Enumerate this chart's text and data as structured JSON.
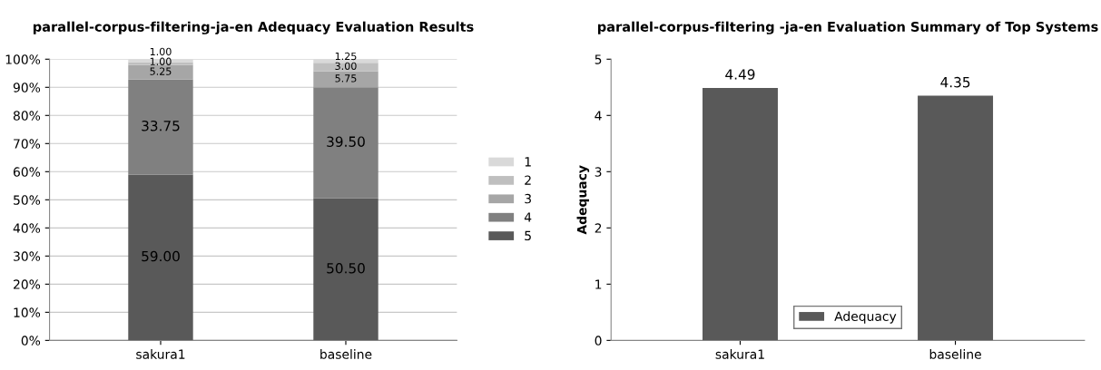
{
  "chart_data": [
    {
      "type": "bar",
      "title": "parallel-corpus-filtering-ja-en Adequacy Evaluation Results",
      "categories": [
        "sakura1",
        "baseline"
      ],
      "stacked": true,
      "grid": "y",
      "legend": "right",
      "ylim": [
        0,
        100
      ],
      "yticks": [
        {
          "value": 0,
          "label": "0%"
        },
        {
          "value": 10,
          "label": "10%"
        },
        {
          "value": 20,
          "label": "20%"
        },
        {
          "value": 30,
          "label": "30%"
        },
        {
          "value": 40,
          "label": "40%"
        },
        {
          "value": 50,
          "label": "50%"
        },
        {
          "value": 60,
          "label": "60%"
        },
        {
          "value": 70,
          "label": "70%"
        },
        {
          "value": 80,
          "label": "80%"
        },
        {
          "value": 90,
          "label": "90%"
        },
        {
          "value": 100,
          "label": "100%"
        }
      ],
      "series": [
        {
          "name": "5",
          "color": "#595959",
          "values": [
            59.0,
            50.5
          ],
          "value_labels": [
            "59.00",
            "50.50"
          ]
        },
        {
          "name": "4",
          "color": "#808080",
          "values": [
            33.75,
            39.5
          ],
          "value_labels": [
            "33.75",
            "39.50"
          ]
        },
        {
          "name": "3",
          "color": "#a6a6a6",
          "values": [
            5.25,
            5.75
          ],
          "value_labels": [
            "5.25",
            "5.75"
          ]
        },
        {
          "name": "2",
          "color": "#bfbfbf",
          "values": [
            1.0,
            3.0
          ],
          "value_labels": [
            "1.00",
            "3.00"
          ]
        },
        {
          "name": "1",
          "color": "#d9d9d9",
          "values": [
            1.0,
            1.25
          ],
          "value_labels": [
            "1.00",
            "1.25"
          ]
        }
      ]
    },
    {
      "type": "bar",
      "title": "parallel-corpus-filtering -ja-en Evaluation Summary of Top Systems",
      "ylabel": "Adequacy",
      "categories": [
        "sakura1",
        "baseline"
      ],
      "data_labels": true,
      "legend": "bottom",
      "ylim": [
        0,
        5
      ],
      "yticks": [
        0,
        1,
        2,
        3,
        4,
        5
      ],
      "series": [
        {
          "name": "Adequacy",
          "color": "#595959",
          "values": [
            4.49,
            4.35
          ]
        }
      ]
    }
  ]
}
